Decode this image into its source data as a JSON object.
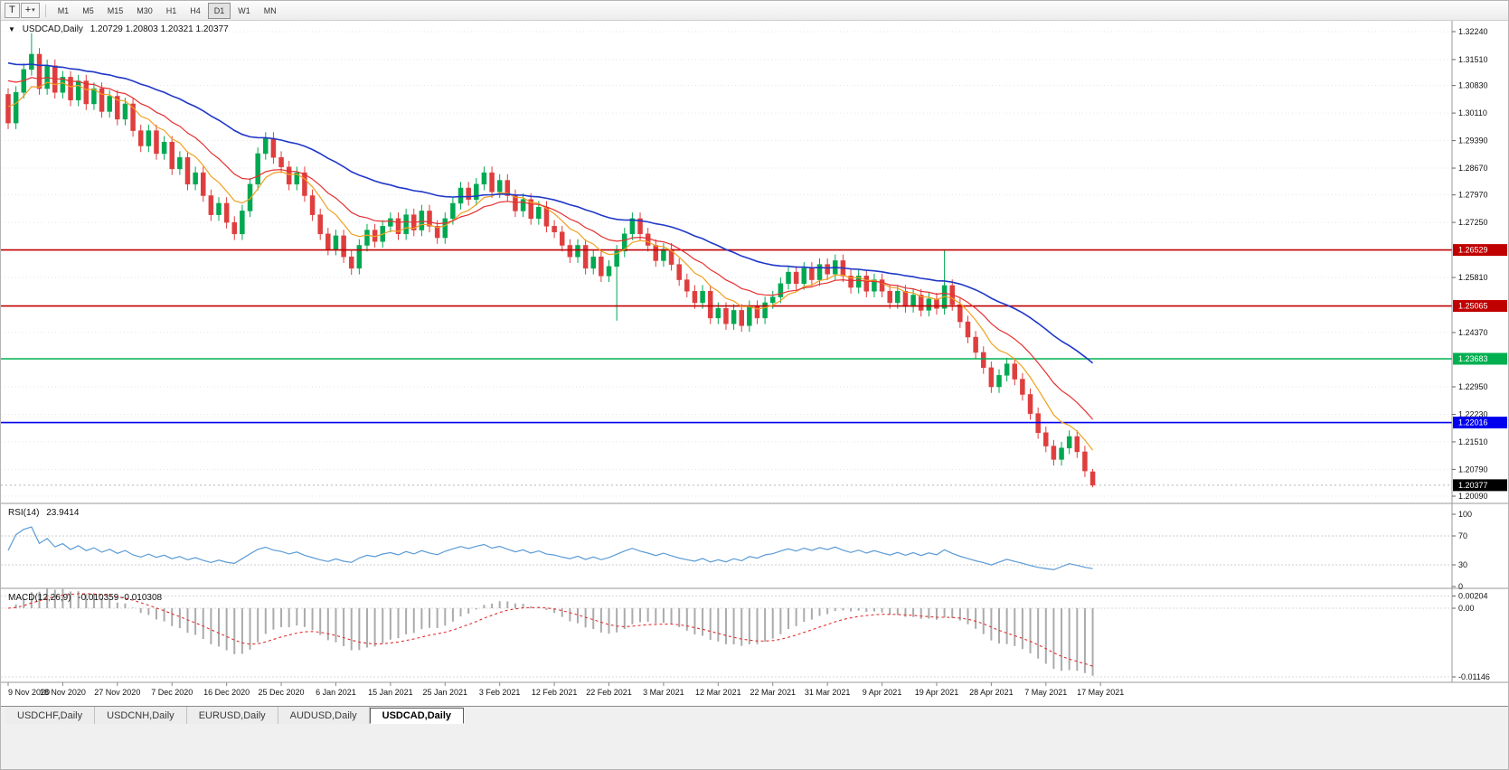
{
  "toolbar": {
    "tool_buttons": [
      {
        "id": "cursor-tool",
        "glyph": "T"
      },
      {
        "id": "objects-tool",
        "glyph": "+",
        "caret": "▾"
      }
    ],
    "timeframes": [
      "M1",
      "M5",
      "M15",
      "M30",
      "H1",
      "H4",
      "D1",
      "W1",
      "MN"
    ],
    "active_timeframe": "D1"
  },
  "chart": {
    "symbol_line": {
      "arrow": "▼",
      "title": "USDCAD,Daily",
      "ohlc": "1.20729 1.20803 1.20321 1.20377"
    },
    "rsi_label": "RSI(14)",
    "rsi_value": "23.9414",
    "macd_label": "MACD(12,26,9)",
    "macd_values": "-0.010359 -0.010308"
  },
  "chart_data": {
    "type": "candlestick",
    "symbol": "USDCAD",
    "timeframe": "Daily",
    "title": "USDCAD,Daily",
    "last_bar": {
      "open": 1.20729,
      "high": 1.20803,
      "low": 1.20321,
      "close": 1.20377
    },
    "y_axis": {
      "range_top": 1.3224,
      "range_bottom": 1.2009,
      "ticks": [
        "1.32240",
        "1.31510",
        "1.30830",
        "1.30110",
        "1.29390",
        "1.28670",
        "1.27970",
        "1.27250",
        "1.25810",
        "1.24370",
        "1.22950",
        "1.22230",
        "1.21510",
        "1.20790",
        "1.20090"
      ]
    },
    "x_labels": [
      "9 Nov 2020",
      "18 Nov 2020",
      "27 Nov 2020",
      "7 Dec 2020",
      "16 Dec 2020",
      "25 Dec 2020",
      "6 Jan 2021",
      "15 Jan 2021",
      "25 Jan 2021",
      "3 Feb 2021",
      "12 Feb 2021",
      "22 Feb 2021",
      "3 Mar 2021",
      "12 Mar 2021",
      "22 Mar 2021",
      "31 Mar 2021",
      "9 Apr 2021",
      "19 Apr 2021",
      "28 Apr 2021",
      "7 May 2021",
      "17 May 2021"
    ],
    "bars_per_label": 7,
    "first_open": 1.306,
    "wick_pad": 0.0016,
    "closes": [
      1.2985,
      1.3065,
      1.3125,
      1.3165,
      1.3075,
      1.3135,
      1.3065,
      1.3105,
      1.3045,
      1.3095,
      1.3035,
      1.3075,
      1.3015,
      1.3055,
      1.2995,
      1.3035,
      1.2965,
      1.2925,
      1.2965,
      1.2905,
      1.2935,
      1.2865,
      1.2895,
      1.2825,
      1.2855,
      1.2795,
      1.2745,
      1.2775,
      1.2725,
      1.2695,
      1.2755,
      1.2825,
      1.2905,
      1.2945,
      1.2895,
      1.287,
      1.2825,
      1.2855,
      1.2795,
      1.2745,
      1.2695,
      1.2655,
      1.269,
      1.2635,
      1.2605,
      1.2665,
      1.2705,
      1.2675,
      1.2715,
      1.2735,
      1.2695,
      1.2745,
      1.2705,
      1.2755,
      1.2715,
      1.2685,
      1.2735,
      1.2775,
      1.2815,
      1.2785,
      1.2825,
      1.2855,
      1.2805,
      1.2835,
      1.2795,
      1.2755,
      1.2785,
      1.2735,
      1.2765,
      1.2715,
      1.27,
      1.2665,
      1.2635,
      1.2665,
      1.2605,
      1.2635,
      1.2585,
      1.261,
      1.265,
      1.2695,
      1.2735,
      1.2695,
      1.2665,
      1.2625,
      1.2655,
      1.2615,
      1.2575,
      1.2545,
      1.2515,
      1.2545,
      1.2475,
      1.25,
      1.246,
      1.2495,
      1.2455,
      1.2505,
      1.2475,
      1.2515,
      1.253,
      1.2565,
      1.2595,
      1.2565,
      1.2605,
      1.2575,
      1.2615,
      1.259,
      1.2625,
      1.2585,
      1.2555,
      1.2585,
      1.2545,
      1.2575,
      1.2545,
      1.2515,
      1.2545,
      1.2505,
      1.2535,
      1.2495,
      1.2525,
      1.25,
      1.256,
      1.251,
      1.2465,
      1.2425,
      1.2385,
      1.2345,
      1.2295,
      1.2325,
      1.2355,
      1.2315,
      1.2275,
      1.2225,
      1.2175,
      1.214,
      1.2105,
      1.2135,
      1.2165,
      1.2125,
      1.2075,
      1.20377
    ],
    "bar_overrides": {
      "3": {
        "h": 1.322
      },
      "44": {
        "l": 1.2588
      },
      "78": {
        "l": 1.2468
      },
      "120": {
        "h": 1.2654
      },
      "139": {
        "o": 1.20729,
        "h": 1.20803,
        "l": 1.20321
      }
    },
    "colors": {
      "bull": "#00a851",
      "bear": "#df3e3e",
      "background": "#ffffff",
      "grid": "#e6e6e6"
    },
    "moving_averages": [
      {
        "period": 8,
        "color": "#f0a020",
        "seed": 1.304
      },
      {
        "period": 16,
        "color": "#e53030",
        "seed": 1.311
      },
      {
        "period": 40,
        "color": "#2038c8",
        "seed": 1.315
      }
    ],
    "horizontal_lines": [
      {
        "price": 1.26529,
        "label": "1.26529",
        "color": "#c00000"
      },
      {
        "price": 1.25065,
        "label": "1.25065",
        "color": "#c00000"
      },
      {
        "price": 1.23683,
        "label": "1.23683",
        "color": "#00b050"
      },
      {
        "price": 1.22016,
        "label": "1.22016",
        "color": "#0000ee"
      }
    ],
    "current_price": {
      "value": 1.20377,
      "label": "1.20377",
      "tag_bg": "#000000"
    },
    "rsi": {
      "period": 14,
      "current": 23.9414,
      "levels": [
        "100",
        "70",
        "30",
        "0"
      ],
      "line_color": "#5b9bd5"
    },
    "macd": {
      "fast": 12,
      "slow": 26,
      "signal": 9,
      "macd_value": -0.010359,
      "signal_value": -0.010308,
      "axis_labels": [
        {
          "text": "0.00204",
          "value": 0.00204
        },
        {
          "text": "0.00",
          "value": 0
        },
        {
          "text": "-0.01146",
          "value": -0.01146
        }
      ],
      "histogram_color": "#ababab",
      "signal_color": "#e03030"
    }
  },
  "tabs": {
    "items": [
      "USDCHF,Daily",
      "USDCNH,Daily",
      "EURUSD,Daily",
      "AUDUSD,Daily",
      "USDCAD,Daily"
    ],
    "active_index": 4
  }
}
